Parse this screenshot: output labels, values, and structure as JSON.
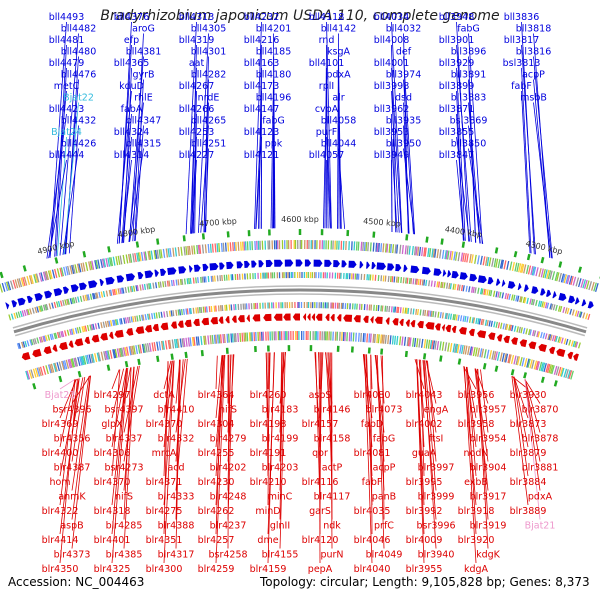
{
  "title": "Bradyrhizobium japonicum USDA 110, complete genome",
  "footer": {
    "accession": "Accession: NC_004463",
    "summary": "Topology: circular; Length: 9,105,828 bp; Genes: 8,373"
  },
  "colors": {
    "forward": "#0000dd",
    "reverse": "#dd0000",
    "rna": "#33bbdd",
    "pseudo": "#ee99cc",
    "backbone": "#888888",
    "marker": "#22aa22"
  },
  "kbp_ticks": [
    "4900 kbp",
    "4800 kbp",
    "4700 kbp",
    "4600 kbp",
    "4500 kbp",
    "4400 kbp",
    "4300 kbp"
  ],
  "top_labels": [
    {
      "text": "bll4493",
      "type": "forward"
    },
    {
      "text": "bll4482",
      "type": "forward"
    },
    {
      "text": "bll4481",
      "type": "forward"
    },
    {
      "text": "bll4480",
      "type": "forward"
    },
    {
      "text": "bll4479",
      "type": "forward"
    },
    {
      "text": "bll4476",
      "type": "forward"
    },
    {
      "text": "metC",
      "type": "forward"
    },
    {
      "text": "Bjat22",
      "type": "rna"
    },
    {
      "text": "bll4423",
      "type": "forward"
    },
    {
      "text": "bll4432",
      "type": "forward"
    },
    {
      "text": "Bjat24",
      "type": "rna"
    },
    {
      "text": "bll4426",
      "type": "forward"
    },
    {
      "text": "bll4444",
      "type": "forward"
    },
    {
      "text": "bll4376",
      "type": "forward"
    },
    {
      "text": "aroG",
      "type": "forward"
    },
    {
      "text": "efp",
      "type": "forward"
    },
    {
      "text": "bll4381",
      "type": "forward"
    },
    {
      "text": "bll4365",
      "type": "forward"
    },
    {
      "text": "gyrB",
      "type": "forward"
    },
    {
      "text": "kduD",
      "type": "forward"
    },
    {
      "text": "rhlE",
      "type": "forward"
    },
    {
      "text": "fabA",
      "type": "forward"
    },
    {
      "text": "bll4347",
      "type": "forward"
    },
    {
      "text": "bll4324",
      "type": "forward"
    },
    {
      "text": "bll4315",
      "type": "forward"
    },
    {
      "text": "bll4314",
      "type": "forward"
    },
    {
      "text": "bll4313",
      "type": "forward"
    },
    {
      "text": "bll4305",
      "type": "forward"
    },
    {
      "text": "bll4319",
      "type": "forward"
    },
    {
      "text": "bll4301",
      "type": "forward"
    },
    {
      "text": "aat",
      "type": "forward"
    },
    {
      "text": "bll4282",
      "type": "forward"
    },
    {
      "text": "bll4267",
      "type": "forward"
    },
    {
      "text": "nrdE",
      "type": "forward"
    },
    {
      "text": "bll4266",
      "type": "forward"
    },
    {
      "text": "bll4265",
      "type": "forward"
    },
    {
      "text": "bll4253",
      "type": "forward"
    },
    {
      "text": "bll4251",
      "type": "forward"
    },
    {
      "text": "bll4227",
      "type": "forward"
    },
    {
      "text": "bll4232",
      "type": "forward"
    },
    {
      "text": "bll4201",
      "type": "forward"
    },
    {
      "text": "bll4216",
      "type": "forward"
    },
    {
      "text": "bll4185",
      "type": "forward"
    },
    {
      "text": "bll4163",
      "type": "forward"
    },
    {
      "text": "bll4180",
      "type": "forward"
    },
    {
      "text": "bll4173",
      "type": "forward"
    },
    {
      "text": "bll4196",
      "type": "forward"
    },
    {
      "text": "bll4147",
      "type": "forward"
    },
    {
      "text": "fabG",
      "type": "forward"
    },
    {
      "text": "bll4123",
      "type": "forward"
    },
    {
      "text": "ppk",
      "type": "forward"
    },
    {
      "text": "bll4121",
      "type": "forward"
    },
    {
      "text": "bll4118",
      "type": "forward"
    },
    {
      "text": "bll4142",
      "type": "forward"
    },
    {
      "text": "rnd",
      "type": "forward"
    },
    {
      "text": "ksgA",
      "type": "forward"
    },
    {
      "text": "bll4101",
      "type": "forward"
    },
    {
      "text": "pdxA",
      "type": "forward"
    },
    {
      "text": "rplI",
      "type": "forward"
    },
    {
      "text": "alr",
      "type": "forward"
    },
    {
      "text": "cvpA",
      "type": "forward"
    },
    {
      "text": "bll4058",
      "type": "forward"
    },
    {
      "text": "purF",
      "type": "forward"
    },
    {
      "text": "bll4044",
      "type": "forward"
    },
    {
      "text": "bll4057",
      "type": "forward"
    },
    {
      "text": "bll4034",
      "type": "forward"
    },
    {
      "text": "bll4032",
      "type": "forward"
    },
    {
      "text": "bll4008",
      "type": "forward"
    },
    {
      "text": "def",
      "type": "forward"
    },
    {
      "text": "bll4001",
      "type": "forward"
    },
    {
      "text": "bll3974",
      "type": "forward"
    },
    {
      "text": "bll3998",
      "type": "forward"
    },
    {
      "text": "dsd",
      "type": "forward"
    },
    {
      "text": "bll3962",
      "type": "forward"
    },
    {
      "text": "bll3935",
      "type": "forward"
    },
    {
      "text": "bll3953",
      "type": "forward"
    },
    {
      "text": "bll3950",
      "type": "forward"
    },
    {
      "text": "bll3949",
      "type": "forward"
    },
    {
      "text": "bll3948",
      "type": "forward"
    },
    {
      "text": "fabG",
      "type": "forward"
    },
    {
      "text": "bll3901",
      "type": "forward"
    },
    {
      "text": "bll3896",
      "type": "forward"
    },
    {
      "text": "bll3929",
      "type": "forward"
    },
    {
      "text": "bll3891",
      "type": "forward"
    },
    {
      "text": "bll3899",
      "type": "forward"
    },
    {
      "text": "bll3883",
      "type": "forward"
    },
    {
      "text": "bll3871",
      "type": "forward"
    },
    {
      "text": "bsl3869",
      "type": "forward"
    },
    {
      "text": "bll3855",
      "type": "forward"
    },
    {
      "text": "bll3850",
      "type": "forward"
    },
    {
      "text": "bll3847",
      "type": "forward"
    },
    {
      "text": "bll3836",
      "type": "forward"
    },
    {
      "text": "bll3818",
      "type": "forward"
    },
    {
      "text": "bll3817",
      "type": "forward"
    },
    {
      "text": "bll3816",
      "type": "forward"
    },
    {
      "text": "bsl3813",
      "type": "forward"
    },
    {
      "text": "acpP",
      "type": "forward"
    },
    {
      "text": "fabF",
      "type": "forward"
    },
    {
      "text": "msbB",
      "type": "forward"
    }
  ],
  "bottom_labels": [
    {
      "text": "Bjat23",
      "type": "pseudo"
    },
    {
      "text": "bsr4396",
      "type": "reverse"
    },
    {
      "text": "blr4369",
      "type": "reverse"
    },
    {
      "text": "blr4356",
      "type": "reverse"
    },
    {
      "text": "blr4400",
      "type": "reverse"
    },
    {
      "text": "blr4387",
      "type": "reverse"
    },
    {
      "text": "hom",
      "type": "reverse"
    },
    {
      "text": "anmK",
      "type": "reverse"
    },
    {
      "text": "blr4322",
      "type": "reverse"
    },
    {
      "text": "aspB",
      "type": "reverse"
    },
    {
      "text": "blr4414",
      "type": "reverse"
    },
    {
      "text": "blr4373",
      "type": "reverse"
    },
    {
      "text": "blr4350",
      "type": "reverse"
    },
    {
      "text": "blr4297",
      "type": "reverse"
    },
    {
      "text": "bsr4397",
      "type": "reverse"
    },
    {
      "text": "glpX",
      "type": "reverse"
    },
    {
      "text": "blr4337",
      "type": "reverse"
    },
    {
      "text": "blr4306",
      "type": "reverse"
    },
    {
      "text": "bsr4273",
      "type": "reverse"
    },
    {
      "text": "blr4370",
      "type": "reverse"
    },
    {
      "text": "nifS",
      "type": "reverse"
    },
    {
      "text": "blr4318",
      "type": "reverse"
    },
    {
      "text": "blr4285",
      "type": "reverse"
    },
    {
      "text": "blr4401",
      "type": "reverse"
    },
    {
      "text": "blr4385",
      "type": "reverse"
    },
    {
      "text": "blr4325",
      "type": "reverse"
    },
    {
      "text": "dctA",
      "type": "reverse"
    },
    {
      "text": "blr4410",
      "type": "reverse"
    },
    {
      "text": "blr4370",
      "type": "reverse"
    },
    {
      "text": "blr4332",
      "type": "reverse"
    },
    {
      "text": "mrcA",
      "type": "reverse"
    },
    {
      "text": "acd",
      "type": "reverse"
    },
    {
      "text": "blr4371",
      "type": "reverse"
    },
    {
      "text": "blr4333",
      "type": "reverse"
    },
    {
      "text": "blr4275",
      "type": "reverse"
    },
    {
      "text": "blr4388",
      "type": "reverse"
    },
    {
      "text": "blr4351",
      "type": "reverse"
    },
    {
      "text": "blr4317",
      "type": "reverse"
    },
    {
      "text": "blr4300",
      "type": "reverse"
    },
    {
      "text": "blr4364",
      "type": "reverse"
    },
    {
      "text": "nifS",
      "type": "reverse"
    },
    {
      "text": "blr4304",
      "type": "reverse"
    },
    {
      "text": "blr4279",
      "type": "reverse"
    },
    {
      "text": "blr4255",
      "type": "reverse"
    },
    {
      "text": "blr4202",
      "type": "reverse"
    },
    {
      "text": "blr4230",
      "type": "reverse"
    },
    {
      "text": "blr4248",
      "type": "reverse"
    },
    {
      "text": "blr4262",
      "type": "reverse"
    },
    {
      "text": "blr4237",
      "type": "reverse"
    },
    {
      "text": "blr4257",
      "type": "reverse"
    },
    {
      "text": "bsr4258",
      "type": "reverse"
    },
    {
      "text": "blr4259",
      "type": "reverse"
    },
    {
      "text": "blr4260",
      "type": "reverse"
    },
    {
      "text": "blr4183",
      "type": "reverse"
    },
    {
      "text": "blr4198",
      "type": "reverse"
    },
    {
      "text": "blr4199",
      "type": "reverse"
    },
    {
      "text": "blr4191",
      "type": "reverse"
    },
    {
      "text": "blr4203",
      "type": "reverse"
    },
    {
      "text": "blr4210",
      "type": "reverse"
    },
    {
      "text": "minC",
      "type": "reverse"
    },
    {
      "text": "minD",
      "type": "reverse"
    },
    {
      "text": "glnII",
      "type": "reverse"
    },
    {
      "text": "dme",
      "type": "reverse"
    },
    {
      "text": "blr4155",
      "type": "reverse"
    },
    {
      "text": "blr4159",
      "type": "reverse"
    },
    {
      "text": "aspS",
      "type": "reverse"
    },
    {
      "text": "blr4146",
      "type": "reverse"
    },
    {
      "text": "blr4157",
      "type": "reverse"
    },
    {
      "text": "blr4158",
      "type": "reverse"
    },
    {
      "text": "qor",
      "type": "reverse"
    },
    {
      "text": "actP",
      "type": "reverse"
    },
    {
      "text": "blr4116",
      "type": "reverse"
    },
    {
      "text": "blr4117",
      "type": "reverse"
    },
    {
      "text": "garS",
      "type": "reverse"
    },
    {
      "text": "ndk",
      "type": "reverse"
    },
    {
      "text": "blr4120",
      "type": "reverse"
    },
    {
      "text": "purN",
      "type": "reverse"
    },
    {
      "text": "pepA",
      "type": "reverse"
    },
    {
      "text": "blr4080",
      "type": "reverse"
    },
    {
      "text": "blr4073",
      "type": "reverse"
    },
    {
      "text": "fabD",
      "type": "reverse"
    },
    {
      "text": "fabG",
      "type": "reverse"
    },
    {
      "text": "blr4081",
      "type": "reverse"
    },
    {
      "text": "acpP",
      "type": "reverse"
    },
    {
      "text": "fabF",
      "type": "reverse"
    },
    {
      "text": "panB",
      "type": "reverse"
    },
    {
      "text": "blr4035",
      "type": "reverse"
    },
    {
      "text": "prfC",
      "type": "reverse"
    },
    {
      "text": "blr4046",
      "type": "reverse"
    },
    {
      "text": "blr4049",
      "type": "reverse"
    },
    {
      "text": "blr4040",
      "type": "reverse"
    },
    {
      "text": "blr4043",
      "type": "reverse"
    },
    {
      "text": "engA",
      "type": "reverse"
    },
    {
      "text": "blr4002",
      "type": "reverse"
    },
    {
      "text": "ftsI",
      "type": "reverse"
    },
    {
      "text": "guaA",
      "type": "reverse"
    },
    {
      "text": "blr3997",
      "type": "reverse"
    },
    {
      "text": "blr3995",
      "type": "reverse"
    },
    {
      "text": "blr3999",
      "type": "reverse"
    },
    {
      "text": "blr3992",
      "type": "reverse"
    },
    {
      "text": "bsr3996",
      "type": "reverse"
    },
    {
      "text": "blr4009",
      "type": "reverse"
    },
    {
      "text": "blr3940",
      "type": "reverse"
    },
    {
      "text": "blr3955",
      "type": "reverse"
    },
    {
      "text": "blr3956",
      "type": "reverse"
    },
    {
      "text": "blr3957",
      "type": "reverse"
    },
    {
      "text": "blr3958",
      "type": "reverse"
    },
    {
      "text": "blr3954",
      "type": "reverse"
    },
    {
      "text": "nodN",
      "type": "reverse"
    },
    {
      "text": "blr3904",
      "type": "reverse"
    },
    {
      "text": "exbB",
      "type": "reverse"
    },
    {
      "text": "blr3917",
      "type": "reverse"
    },
    {
      "text": "blr3918",
      "type": "reverse"
    },
    {
      "text": "blr3919",
      "type": "reverse"
    },
    {
      "text": "blr3920",
      "type": "reverse"
    },
    {
      "text": "kdgK",
      "type": "reverse"
    },
    {
      "text": "kdgA",
      "type": "reverse"
    },
    {
      "text": "blr3930",
      "type": "reverse"
    },
    {
      "text": "blr3870",
      "type": "reverse"
    },
    {
      "text": "blr3873",
      "type": "reverse"
    },
    {
      "text": "blr3878",
      "type": "reverse"
    },
    {
      "text": "blr3879",
      "type": "reverse"
    },
    {
      "text": "blr3881",
      "type": "reverse"
    },
    {
      "text": "blr3884",
      "type": "reverse"
    },
    {
      "text": "pdxA",
      "type": "reverse"
    },
    {
      "text": "blr3889",
      "type": "reverse"
    },
    {
      "text": "Bjat21",
      "type": "pseudo"
    }
  ]
}
